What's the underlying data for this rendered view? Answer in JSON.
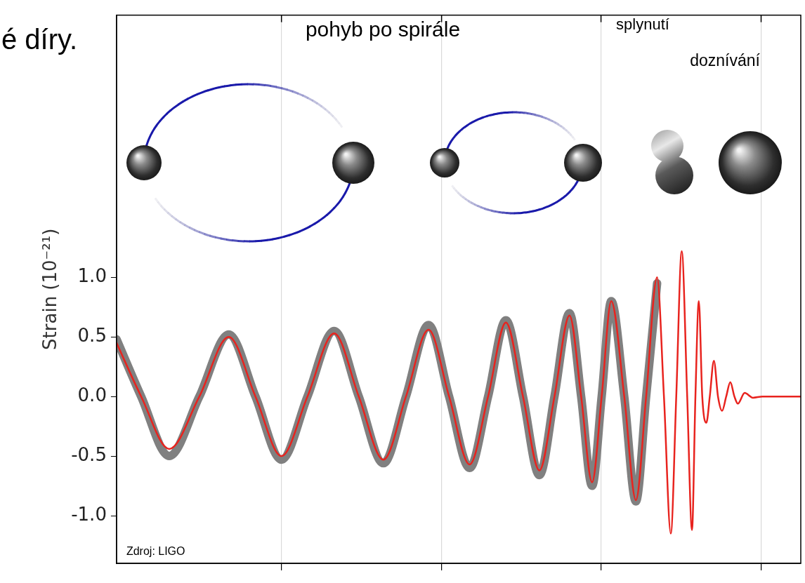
{
  "chart_data": {
    "type": "line",
    "slide_text": "é díry.",
    "annotations": [
      "pohyb po spirále",
      "splynutí",
      "doznívání"
    ],
    "source": "Zdroj: LIGO",
    "y_label": "Strain (10⁻²¹)",
    "x": [
      0.0,
      3.6,
      7.7,
      12.1,
      16.4,
      20.3,
      24.1,
      27.9,
      31.8,
      35.4,
      39.0,
      42.3,
      45.6,
      48.6,
      51.6,
      54.3,
      56.9,
      59.4,
      61.8,
      64.0,
      66.2,
      67.9,
      69.5,
      70.9,
      72.3,
      74.2,
      75.9,
      77.4,
      79.0,
      80.0,
      81.0,
      81.8,
      82.6,
      83.4,
      84.1,
      84.6,
      85.1,
      85.6,
      86.2,
      86.7,
      87.3,
      87.9,
      88.5,
      89.1,
      89.7,
      90.3,
      90.8,
      91.8,
      93.0,
      94.4,
      100.0
    ],
    "series": [
      {
        "color": "#808080",
        "values": [
          0.48,
          0,
          -0.5,
          0,
          0.52,
          0,
          -0.53,
          0,
          0.55,
          0,
          -0.56,
          0,
          0.6,
          0,
          -0.6,
          0,
          0.64,
          0,
          -0.66,
          0,
          0.7,
          0,
          -0.75,
          0,
          0.8,
          0,
          -0.88,
          0,
          0.95,
          null,
          null,
          null,
          null,
          null,
          null,
          null,
          null,
          null,
          null,
          null,
          null,
          null,
          null,
          null,
          null,
          null,
          null,
          null,
          null,
          null,
          null
        ]
      },
      {
        "color": "#e8231e",
        "values": [
          0.45,
          0,
          -0.44,
          0,
          0.5,
          0,
          -0.5,
          0,
          0.53,
          0,
          -0.53,
          0,
          0.56,
          0,
          -0.57,
          0,
          0.62,
          0,
          -0.62,
          0,
          0.68,
          0,
          -0.72,
          0,
          0.8,
          0,
          -0.87,
          0,
          1.0,
          0,
          -1.15,
          0,
          1.22,
          0,
          -1.12,
          0,
          0.8,
          0,
          -0.22,
          0,
          0.3,
          0,
          -0.12,
          0,
          0.12,
          0,
          -0.06,
          0.03,
          -0.01,
          0,
          0
        ]
      }
    ],
    "xlim": [
      0,
      100
    ],
    "xticks": [
      24.1,
      47.5,
      70.8,
      94.2
    ],
    "ylim": [
      -1.4,
      3.2
    ],
    "yticks": [
      {
        "value": -1,
        "label": "-1.0"
      },
      -0.5,
      {
        "value": 0,
        "label": "0.0"
      },
      0.5,
      {
        "value": 1,
        "label": "1.0"
      }
    ],
    "grid": "x",
    "tick_labels": "y"
  }
}
